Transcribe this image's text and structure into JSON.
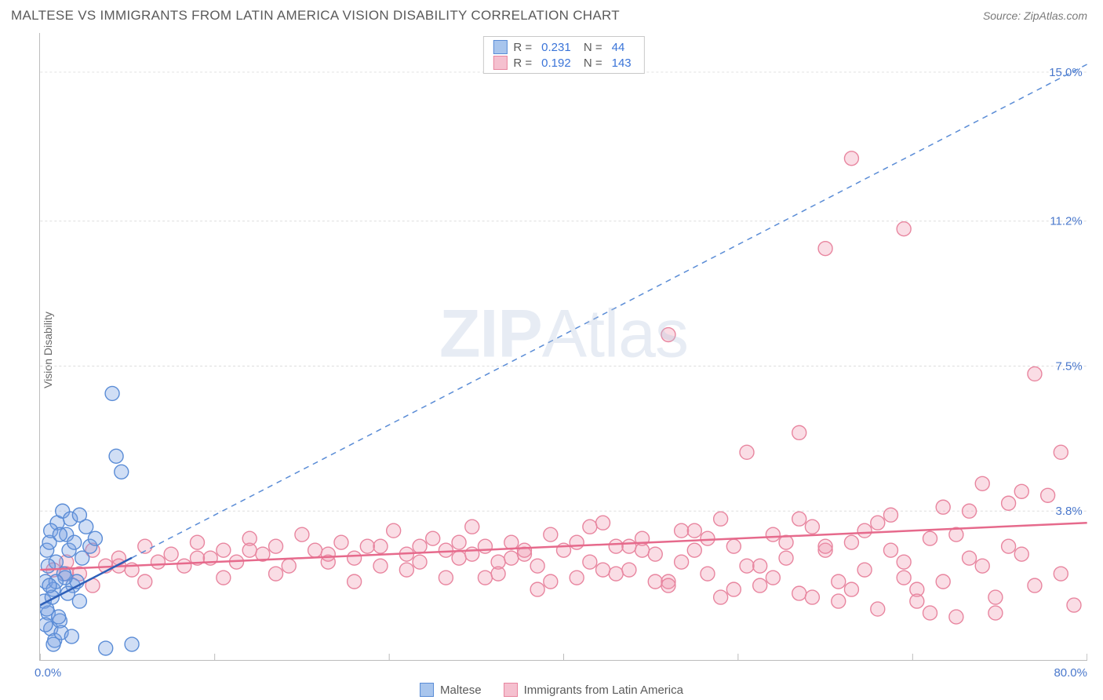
{
  "header": {
    "title": "MALTESE VS IMMIGRANTS FROM LATIN AMERICA VISION DISABILITY CORRELATION CHART",
    "source": "Source: ZipAtlas.com"
  },
  "watermark": {
    "bold": "ZIP",
    "light": "Atlas"
  },
  "y_axis": {
    "label": "Vision Disability"
  },
  "chart": {
    "type": "scatter",
    "xlim": [
      0,
      80
    ],
    "ylim": [
      0,
      16
    ],
    "x_ticks": [
      0,
      13.33,
      26.67,
      40,
      53.33,
      66.67,
      80
    ],
    "y_gridlines": [
      3.8,
      7.5,
      11.2,
      15.0
    ],
    "y_grid_labels": [
      "3.8%",
      "7.5%",
      "11.2%",
      "15.0%"
    ],
    "x_min_label": "0.0%",
    "x_max_label": "80.0%",
    "background_color": "#ffffff",
    "grid_color": "#dddddd",
    "tick_label_color": "#4a78cc",
    "marker_radius": 9,
    "marker_stroke_width": 1.4,
    "series": [
      {
        "name": "Maltese",
        "color_fill": "rgba(120,160,225,0.35)",
        "color_stroke": "#5a8cd6",
        "swatch_fill": "#a8c5ed",
        "swatch_border": "#5a8cd6",
        "R": "0.231",
        "N": "44",
        "trend": {
          "x1": 0,
          "y1": 1.4,
          "x2": 80,
          "y2": 15.2,
          "dashed": true,
          "solid_until_x": 7
        },
        "points": [
          [
            0.3,
            1.5
          ],
          [
            0.4,
            2.0
          ],
          [
            0.6,
            1.2
          ],
          [
            0.8,
            0.8
          ],
          [
            0.5,
            2.8
          ],
          [
            1.0,
            1.8
          ],
          [
            1.2,
            2.5
          ],
          [
            0.7,
            3.0
          ],
          [
            1.5,
            1.0
          ],
          [
            1.8,
            2.2
          ],
          [
            0.9,
            1.6
          ],
          [
            2.0,
            3.2
          ],
          [
            1.1,
            0.5
          ],
          [
            2.2,
            2.8
          ],
          [
            1.3,
            3.5
          ],
          [
            2.5,
            1.9
          ],
          [
            0.6,
            2.4
          ],
          [
            1.7,
            3.8
          ],
          [
            2.8,
            2.0
          ],
          [
            3.0,
            1.5
          ],
          [
            1.4,
            1.1
          ],
          [
            0.8,
            3.3
          ],
          [
            2.3,
            3.6
          ],
          [
            1.6,
            0.7
          ],
          [
            3.2,
            2.6
          ],
          [
            0.5,
            1.3
          ],
          [
            2.6,
            3.0
          ],
          [
            1.9,
            2.1
          ],
          [
            0.4,
            0.9
          ],
          [
            3.5,
            3.4
          ],
          [
            1.0,
            0.4
          ],
          [
            2.1,
            1.7
          ],
          [
            5.5,
            6.8
          ],
          [
            5.8,
            5.2
          ],
          [
            6.2,
            4.8
          ],
          [
            5.0,
            0.3
          ],
          [
            7.0,
            0.4
          ],
          [
            3.8,
            2.9
          ],
          [
            4.2,
            3.1
          ],
          [
            1.2,
            2.0
          ],
          [
            0.7,
            1.9
          ],
          [
            2.4,
            0.6
          ],
          [
            3.0,
            3.7
          ],
          [
            1.5,
            3.2
          ]
        ]
      },
      {
        "name": "Immigrants from Latin America",
        "color_fill": "rgba(240,150,175,0.32)",
        "color_stroke": "#e8859f",
        "swatch_fill": "#f5c0cf",
        "swatch_border": "#e8859f",
        "R": "0.192",
        "N": "143",
        "trend": {
          "x1": 0,
          "y1": 2.3,
          "x2": 80,
          "y2": 3.5,
          "dashed": false
        },
        "points": [
          [
            1,
            2.3
          ],
          [
            2,
            2.5
          ],
          [
            3,
            2.2
          ],
          [
            4,
            2.8
          ],
          [
            5,
            2.4
          ],
          [
            6,
            2.6
          ],
          [
            7,
            2.3
          ],
          [
            8,
            2.9
          ],
          [
            9,
            2.5
          ],
          [
            10,
            2.7
          ],
          [
            11,
            2.4
          ],
          [
            12,
            3.0
          ],
          [
            13,
            2.6
          ],
          [
            14,
            2.8
          ],
          [
            15,
            2.5
          ],
          [
            16,
            3.1
          ],
          [
            17,
            2.7
          ],
          [
            18,
            2.9
          ],
          [
            19,
            2.4
          ],
          [
            20,
            3.2
          ],
          [
            21,
            2.8
          ],
          [
            22,
            2.5
          ],
          [
            23,
            3.0
          ],
          [
            24,
            2.6
          ],
          [
            25,
            2.9
          ],
          [
            26,
            2.4
          ],
          [
            27,
            3.3
          ],
          [
            28,
            2.7
          ],
          [
            29,
            2.5
          ],
          [
            30,
            3.1
          ],
          [
            31,
            2.8
          ],
          [
            32,
            2.6
          ],
          [
            33,
            3.4
          ],
          [
            34,
            2.9
          ],
          [
            35,
            2.5
          ],
          [
            36,
            3.0
          ],
          [
            37,
            2.7
          ],
          [
            38,
            2.4
          ],
          [
            39,
            3.2
          ],
          [
            40,
            2.8
          ],
          [
            41,
            2.1
          ],
          [
            42,
            2.5
          ],
          [
            43,
            3.5
          ],
          [
            44,
            2.9
          ],
          [
            45,
            2.3
          ],
          [
            46,
            3.1
          ],
          [
            47,
            2.7
          ],
          [
            48,
            2.0
          ],
          [
            49,
            3.3
          ],
          [
            50,
            2.8
          ],
          [
            51,
            2.2
          ],
          [
            52,
            3.6
          ],
          [
            53,
            2.9
          ],
          [
            54,
            2.4
          ],
          [
            55,
            1.9
          ],
          [
            56,
            3.2
          ],
          [
            57,
            2.6
          ],
          [
            58,
            1.7
          ],
          [
            59,
            3.4
          ],
          [
            60,
            2.8
          ],
          [
            61,
            1.5
          ],
          [
            62,
            3.0
          ],
          [
            63,
            2.3
          ],
          [
            64,
            1.3
          ],
          [
            65,
            3.7
          ],
          [
            66,
            2.5
          ],
          [
            67,
            1.8
          ],
          [
            68,
            3.1
          ],
          [
            69,
            2.0
          ],
          [
            70,
            1.1
          ],
          [
            71,
            3.8
          ],
          [
            72,
            2.4
          ],
          [
            73,
            1.6
          ],
          [
            74,
            4.0
          ],
          [
            75,
            2.7
          ],
          [
            76,
            1.9
          ],
          [
            77,
            4.2
          ],
          [
            78,
            2.2
          ],
          [
            79,
            1.4
          ],
          [
            72,
            4.5
          ],
          [
            54,
            5.3
          ],
          [
            58,
            5.8
          ],
          [
            60,
            10.5
          ],
          [
            62,
            12.8
          ],
          [
            66,
            11.0
          ],
          [
            48,
            8.3
          ],
          [
            74,
            2.9
          ],
          [
            75,
            4.3
          ],
          [
            76,
            7.3
          ],
          [
            78,
            5.3
          ],
          [
            70,
            3.2
          ],
          [
            68,
            1.2
          ],
          [
            66,
            2.1
          ],
          [
            64,
            3.5
          ],
          [
            62,
            1.8
          ],
          [
            60,
            2.9
          ],
          [
            58,
            3.6
          ],
          [
            56,
            2.1
          ],
          [
            52,
            1.6
          ],
          [
            50,
            3.3
          ],
          [
            48,
            1.9
          ],
          [
            46,
            2.8
          ],
          [
            44,
            2.2
          ],
          [
            42,
            3.4
          ],
          [
            38,
            1.8
          ],
          [
            36,
            2.6
          ],
          [
            34,
            2.1
          ],
          [
            32,
            3.0
          ],
          [
            28,
            2.3
          ],
          [
            26,
            2.9
          ],
          [
            24,
            2.0
          ],
          [
            22,
            2.7
          ],
          [
            18,
            2.2
          ],
          [
            16,
            2.8
          ],
          [
            14,
            2.1
          ],
          [
            12,
            2.6
          ],
          [
            8,
            2.0
          ],
          [
            6,
            2.4
          ],
          [
            4,
            1.9
          ],
          [
            2,
            2.2
          ],
          [
            73,
            1.2
          ],
          [
            71,
            2.6
          ],
          [
            69,
            3.9
          ],
          [
            67,
            1.5
          ],
          [
            65,
            2.8
          ],
          [
            63,
            3.3
          ],
          [
            61,
            2.0
          ],
          [
            59,
            1.6
          ],
          [
            57,
            3.0
          ],
          [
            55,
            2.4
          ],
          [
            53,
            1.8
          ],
          [
            51,
            3.1
          ],
          [
            49,
            2.5
          ],
          [
            47,
            2.0
          ],
          [
            45,
            2.9
          ],
          [
            43,
            2.3
          ],
          [
            41,
            3.0
          ],
          [
            39,
            2.0
          ],
          [
            37,
            2.8
          ],
          [
            35,
            2.2
          ],
          [
            33,
            2.7
          ],
          [
            31,
            2.1
          ],
          [
            29,
            2.9
          ]
        ]
      }
    ]
  },
  "bottom_legend": [
    {
      "label": "Maltese",
      "fill": "#a8c5ed",
      "border": "#5a8cd6"
    },
    {
      "label": "Immigrants from Latin America",
      "fill": "#f5c0cf",
      "border": "#e8859f"
    }
  ]
}
